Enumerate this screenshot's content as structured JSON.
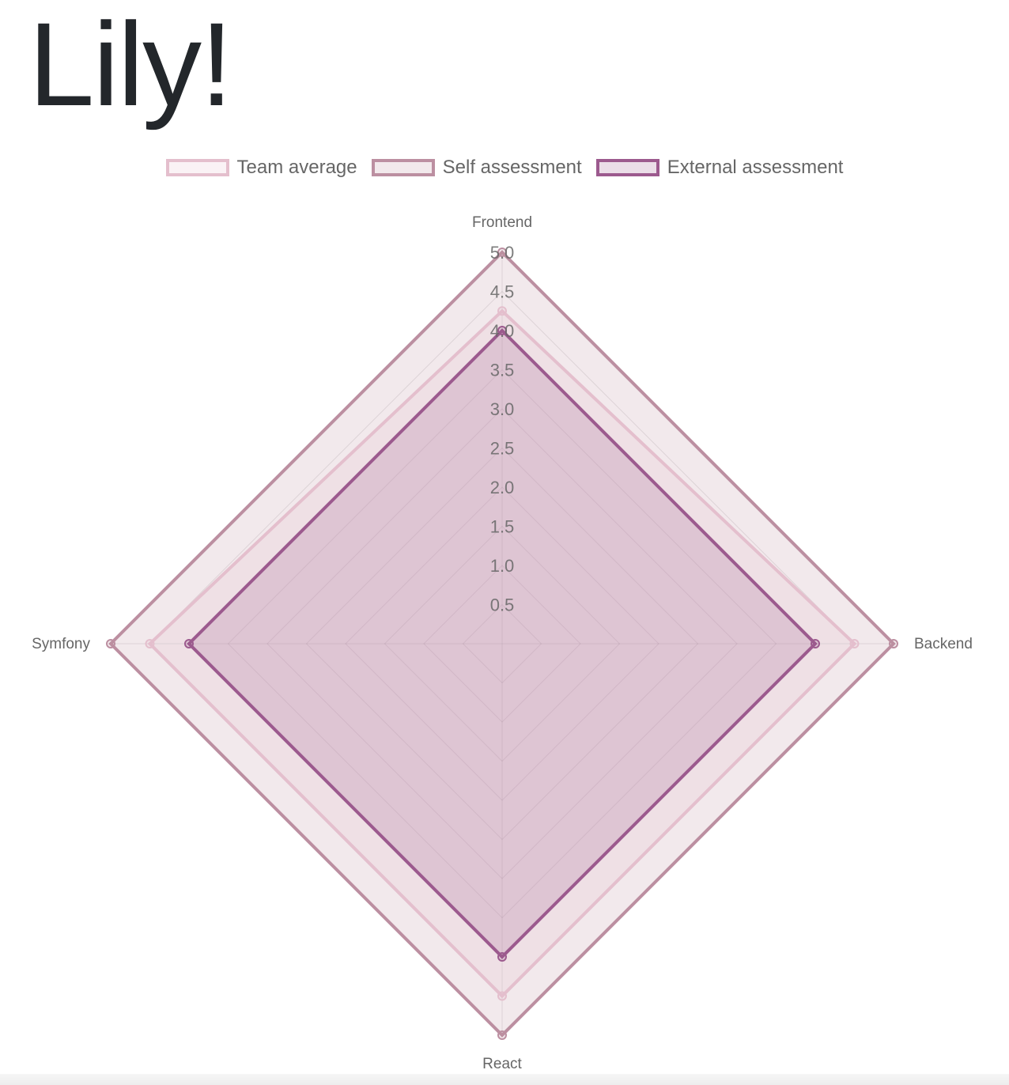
{
  "title": "Lily!",
  "chart_data": {
    "type": "radar",
    "labels": [
      "Frontend",
      "Backend",
      "React",
      "Symfony"
    ],
    "rmin": 0,
    "rmax": 5,
    "tick_step": 0.5,
    "ticks": [
      "0.5",
      "1.0",
      "1.5",
      "2.0",
      "2.5",
      "3.0",
      "3.5",
      "4.0",
      "4.5",
      "5.0"
    ],
    "grid": true,
    "legend_position": "top",
    "series": [
      {
        "name": "Team average",
        "values": [
          4.25,
          4.5,
          4.5,
          4.5
        ],
        "border": "#e4bfcd",
        "fill": "rgba(228,191,205,0.2)"
      },
      {
        "name": "Self assessment",
        "values": [
          5,
          5,
          5,
          5
        ],
        "border": "#bc8fa1",
        "fill": "rgba(188,143,161,0.2)"
      },
      {
        "name": "External assessment",
        "values": [
          4,
          4,
          4,
          4
        ],
        "border": "#9c5a8e",
        "fill": "rgba(156,90,142,0.2)"
      }
    ]
  }
}
